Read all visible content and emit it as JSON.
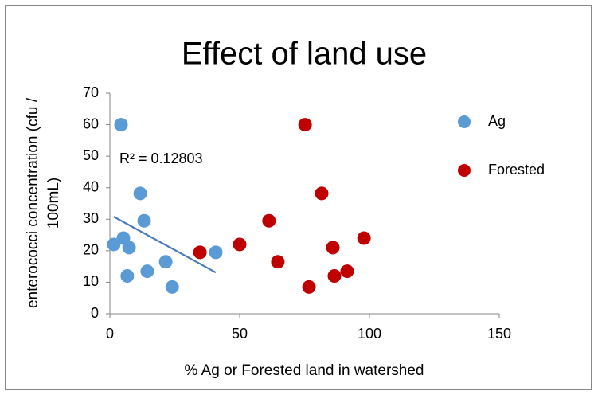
{
  "chart_data": {
    "type": "scatter",
    "title": "Effect of land use",
    "x_label": "% Ag or Forested land in watershed",
    "y_label": [
      "enterococci concentration (cfu /",
      "100mL)"
    ],
    "xlim": [
      0,
      150
    ],
    "xticks": [
      0,
      50,
      100,
      150
    ],
    "ylim": [
      0,
      70
    ],
    "yticks": [
      0,
      10,
      20,
      30,
      40,
      50,
      60,
      70
    ],
    "legend": "right",
    "series": [
      {
        "name": "Ag",
        "color": "#5b9bd5",
        "x": [
          4.3,
          11.7,
          13.2,
          5.2,
          1.5,
          7.4,
          6.7,
          14.4,
          21.5,
          24,
          40.8
        ],
        "values": [
          60,
          38.2,
          29.5,
          24,
          22,
          21,
          12,
          13.5,
          16.5,
          8.5,
          19.5
        ]
      },
      {
        "name": "Forested",
        "color": "#c00000",
        "x": [
          34.7,
          50,
          61.3,
          75.2,
          64.7,
          76.7,
          81.6,
          85.9,
          86.5,
          91.4,
          97.9
        ],
        "values": [
          19.5,
          22,
          29.5,
          60,
          16.5,
          8.5,
          38.2,
          21,
          12,
          13.5,
          24
        ]
      }
    ],
    "trendline": {
      "color": "#4a7ebb",
      "x": [
        1.5,
        40.8
      ],
      "values": [
        30.8,
        13.1
      ]
    },
    "annotation": "R² = 0.12803"
  }
}
